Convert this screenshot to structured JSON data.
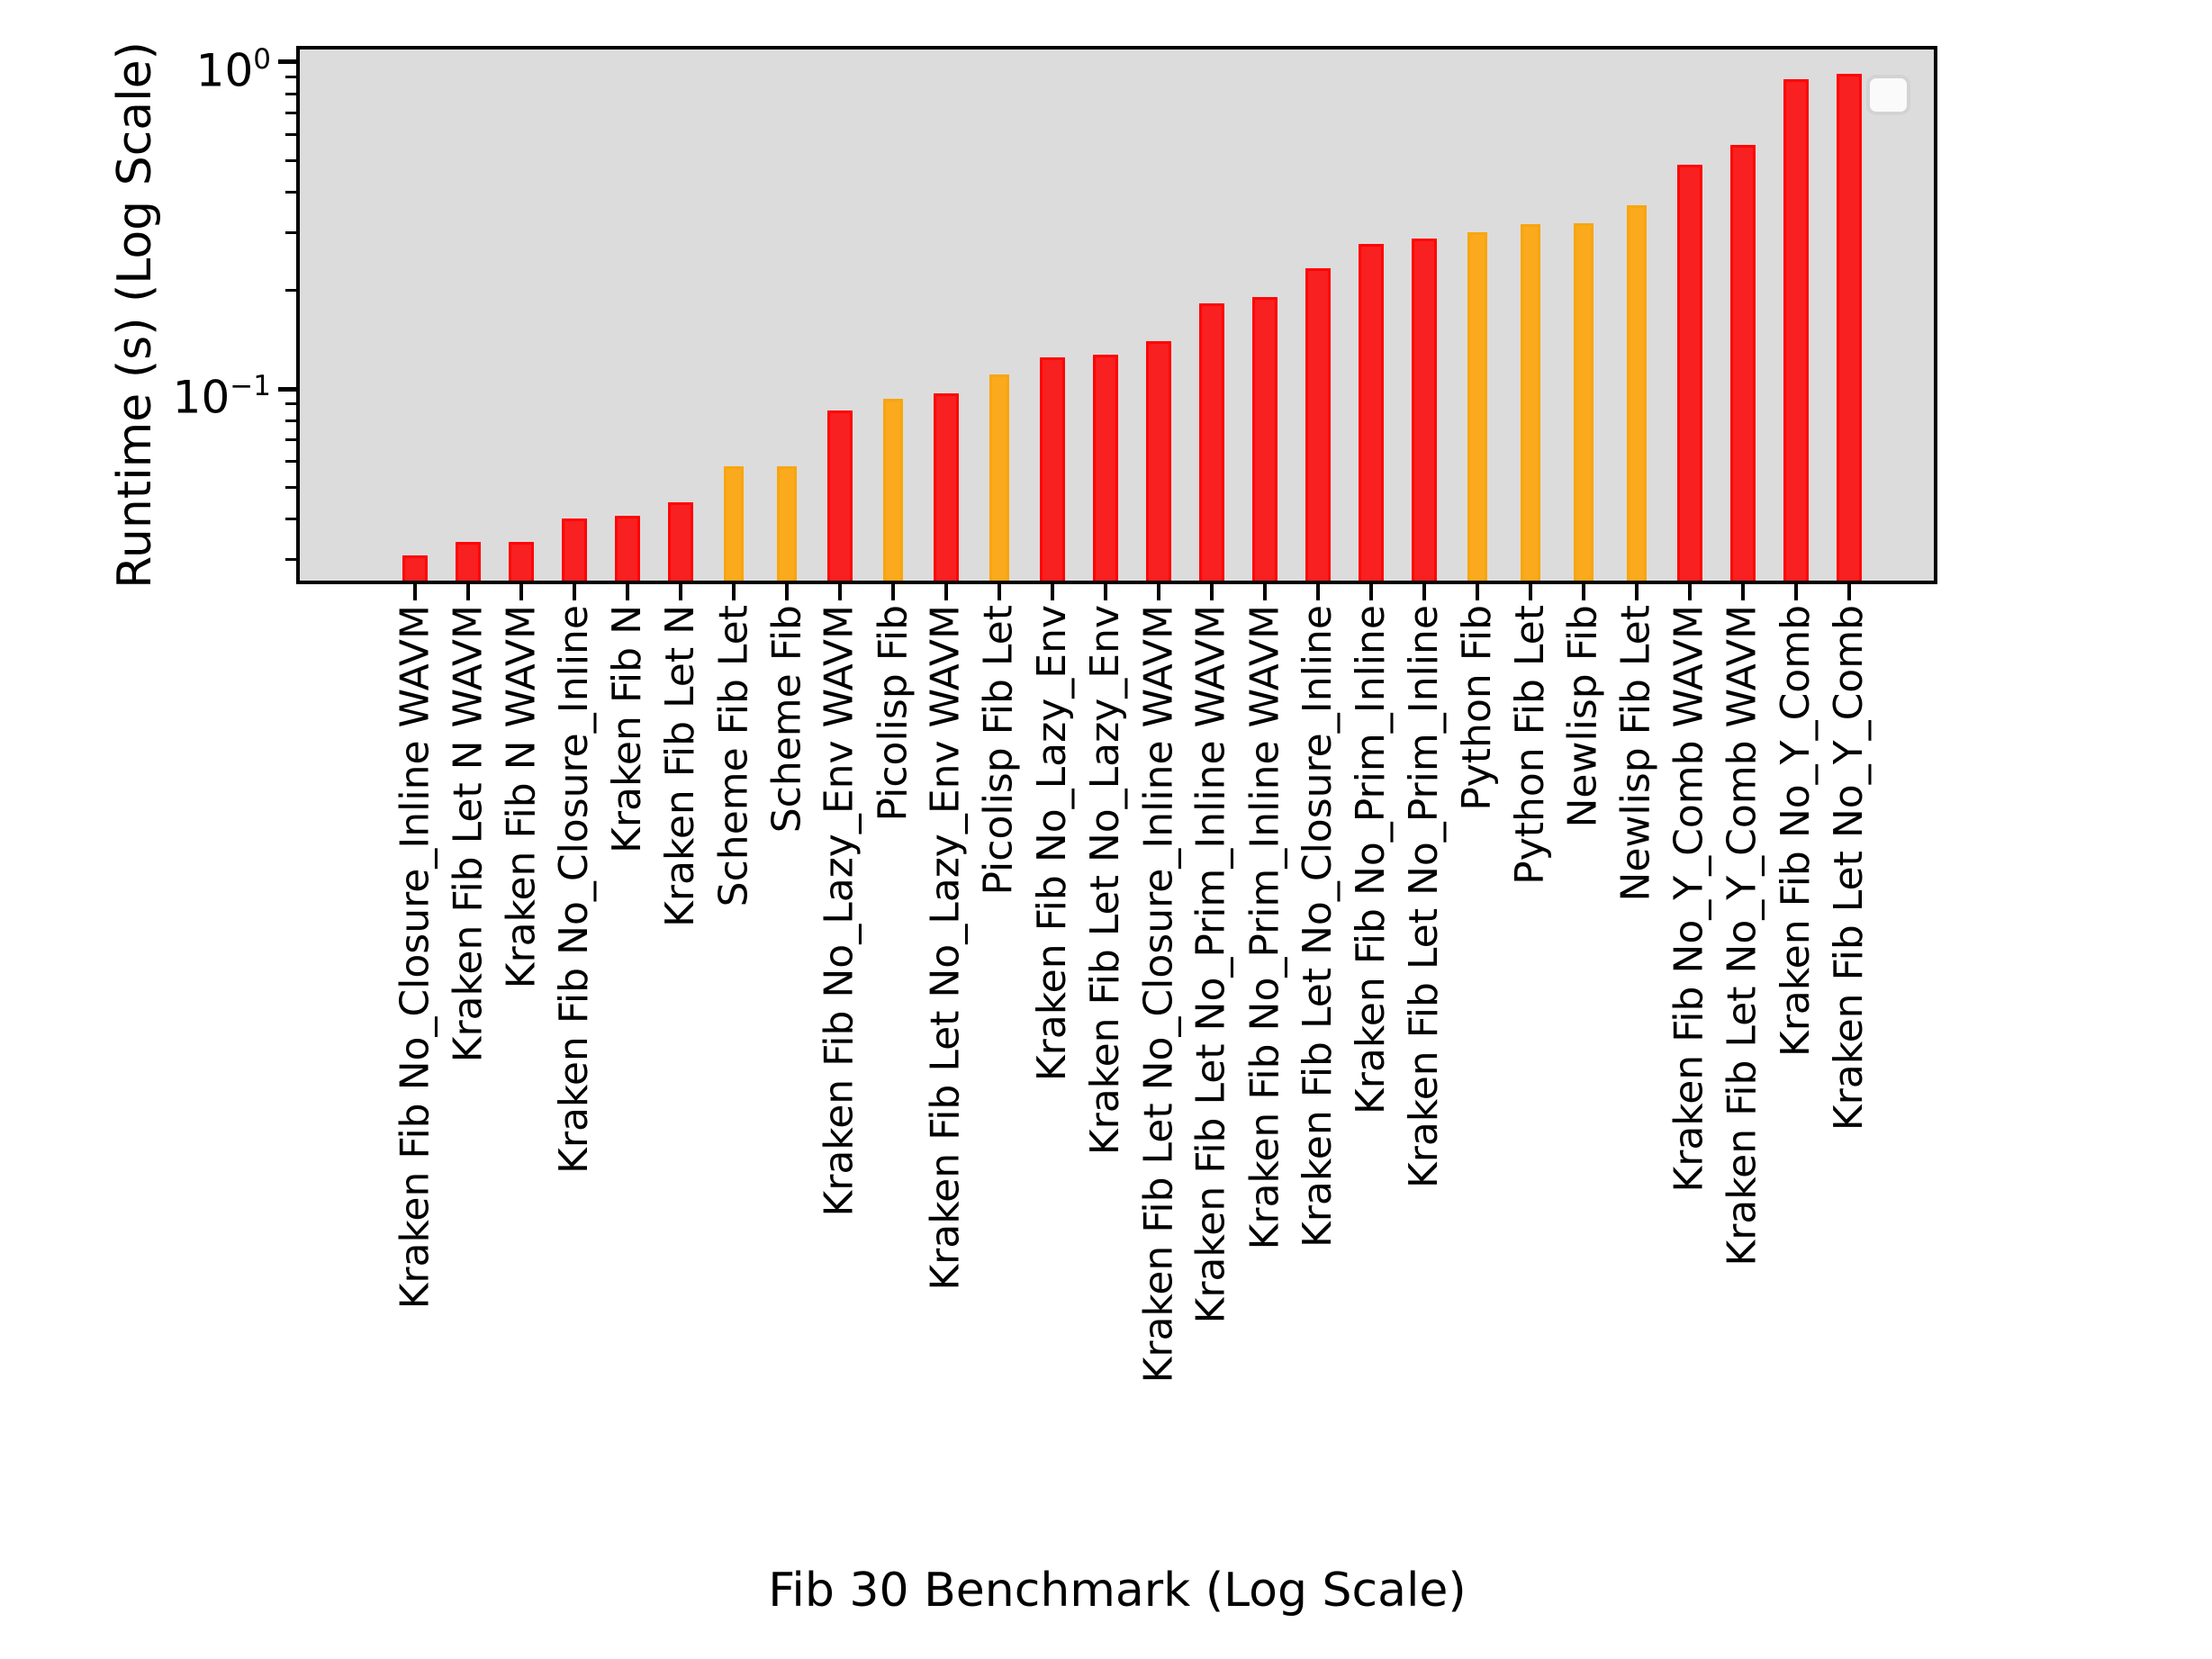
{
  "figure": {
    "background": "#ffffff",
    "plot_background": "#dcdcdc",
    "spine_color": "#000000"
  },
  "axes": {
    "ylabel": "Runtime (s) (Log Scale)",
    "xlabel": "Fib 30 Benchmark (Log Scale)",
    "y_scale": "log",
    "y_major_ticks": [
      {
        "base": "10",
        "exp": "0",
        "value": 1.0
      },
      {
        "base": "10",
        "exp": "−1",
        "value": 0.1
      }
    ],
    "y_minor_tick_values": [
      0.9,
      0.8,
      0.7,
      0.6,
      0.5,
      0.4,
      0.3,
      0.2,
      0.09,
      0.08,
      0.07,
      0.06,
      0.05,
      0.04,
      0.03
    ]
  },
  "legend": {
    "visible": true,
    "entries": []
  },
  "colors": {
    "kraken_red_fill": "#f82020",
    "kraken_red_edge": "#fe0505",
    "other_orange_fill": "#faaa1c",
    "other_orange_edge": "#f8a50e"
  },
  "chart_data": {
    "type": "bar",
    "title": "",
    "xlabel": "Fib 30 Benchmark (Log Scale)",
    "ylabel": "Runtime (s) (Log Scale)",
    "y_scale": "log",
    "ylim": [
      0.0259,
      1.0928
    ],
    "grid": false,
    "legend_position": "upper right",
    "categories": [
      "Kraken Fib No_Closure_Inline WAVM",
      "Kraken Fib Let N WAVM",
      "Kraken Fib N WAVM",
      "Kraken Fib No_Closure_Inline",
      "Kraken Fib N",
      "Kraken Fib Let N",
      "Scheme Fib Let",
      "Scheme Fib",
      "Kraken Fib No_Lazy_Env WAVM",
      "Picolisp Fib",
      "Kraken Fib Let No_Lazy_Env WAVM",
      "Picolisp Fib Let",
      "Kraken Fib No_Lazy_Env",
      "Kraken Fib Let No_Lazy_Env",
      "Kraken Fib Let No_Closure_Inline WAVM",
      "Kraken Fib Let No_Prim_Inline WAVM",
      "Kraken Fib No_Prim_Inline WAVM",
      "Kraken Fib Let No_Closure_Inline",
      "Kraken Fib No_Prim_Inline",
      "Kraken Fib Let No_Prim_Inline",
      "Python Fib",
      "Python Fib Let",
      "Newlisp Fib",
      "Newlisp Fib Let",
      "Kraken Fib No_Y_Comb WAVM",
      "Kraken Fib Let No_Y_Comb WAVM",
      "Kraken Fib No_Y_Comb",
      "Kraken Fib Let No_Y_Comb"
    ],
    "values": [
      0.031,
      0.034,
      0.034,
      0.04,
      0.041,
      0.045,
      0.058,
      0.058,
      0.086,
      0.093,
      0.097,
      0.111,
      0.125,
      0.127,
      0.14,
      0.183,
      0.191,
      0.234,
      0.278,
      0.288,
      0.301,
      0.319,
      0.321,
      0.365,
      0.485,
      0.558,
      0.887,
      0.921
    ],
    "bar_colors": [
      "red",
      "red",
      "red",
      "red",
      "red",
      "red",
      "orange",
      "orange",
      "red",
      "orange",
      "red",
      "orange",
      "red",
      "red",
      "red",
      "red",
      "red",
      "red",
      "red",
      "red",
      "orange",
      "orange",
      "orange",
      "orange",
      "red",
      "red",
      "red",
      "red"
    ]
  }
}
